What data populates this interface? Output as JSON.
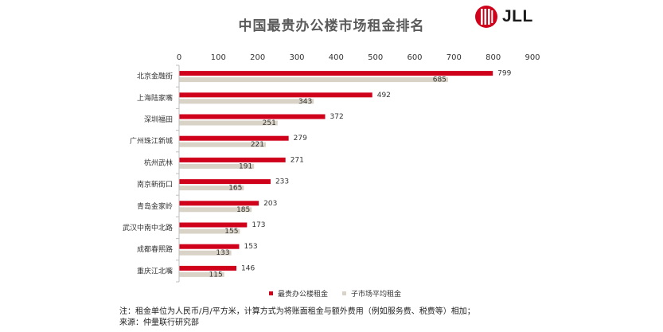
{
  "title": "中国最贵办公楼市场租金排名",
  "logo": {
    "text": "JLL"
  },
  "colors": {
    "primary": "#D0021B",
    "secondary": "#D9D3C7",
    "axis": "#BFBFBF"
  },
  "chart_data": {
    "type": "bar",
    "orientation": "horizontal",
    "categories": [
      "北京金融街",
      "上海陆家嘴",
      "深圳福田",
      "广州珠江新城",
      "杭州武林",
      "南京新街口",
      "青岛金家岭",
      "武汉中南中北路",
      "成都春熙路",
      "重庆江北嘴"
    ],
    "series": [
      {
        "name": "最贵办公楼租金",
        "values": [
          799,
          492,
          372,
          279,
          271,
          233,
          203,
          173,
          153,
          146
        ]
      },
      {
        "name": "子市场平均租金",
        "values": [
          685,
          343,
          251,
          221,
          191,
          165,
          185,
          155,
          133,
          115
        ]
      }
    ],
    "xlim": [
      0,
      900
    ],
    "xticks": [
      "0",
      "100",
      "200",
      "300",
      "400",
      "500",
      "600",
      "700",
      "800",
      "900"
    ],
    "tick_values": [
      0,
      100,
      200,
      300,
      400,
      500,
      600,
      700,
      800,
      900
    ],
    "axis_position": "top",
    "grid": false,
    "legend_position": "bottom"
  },
  "notes": [
    "注：租金单位为人民币/月/平方米，计算方式为将账面租金与额外费用（例如服务费、税费等）相加；",
    "来源：仲量联行研究部"
  ]
}
